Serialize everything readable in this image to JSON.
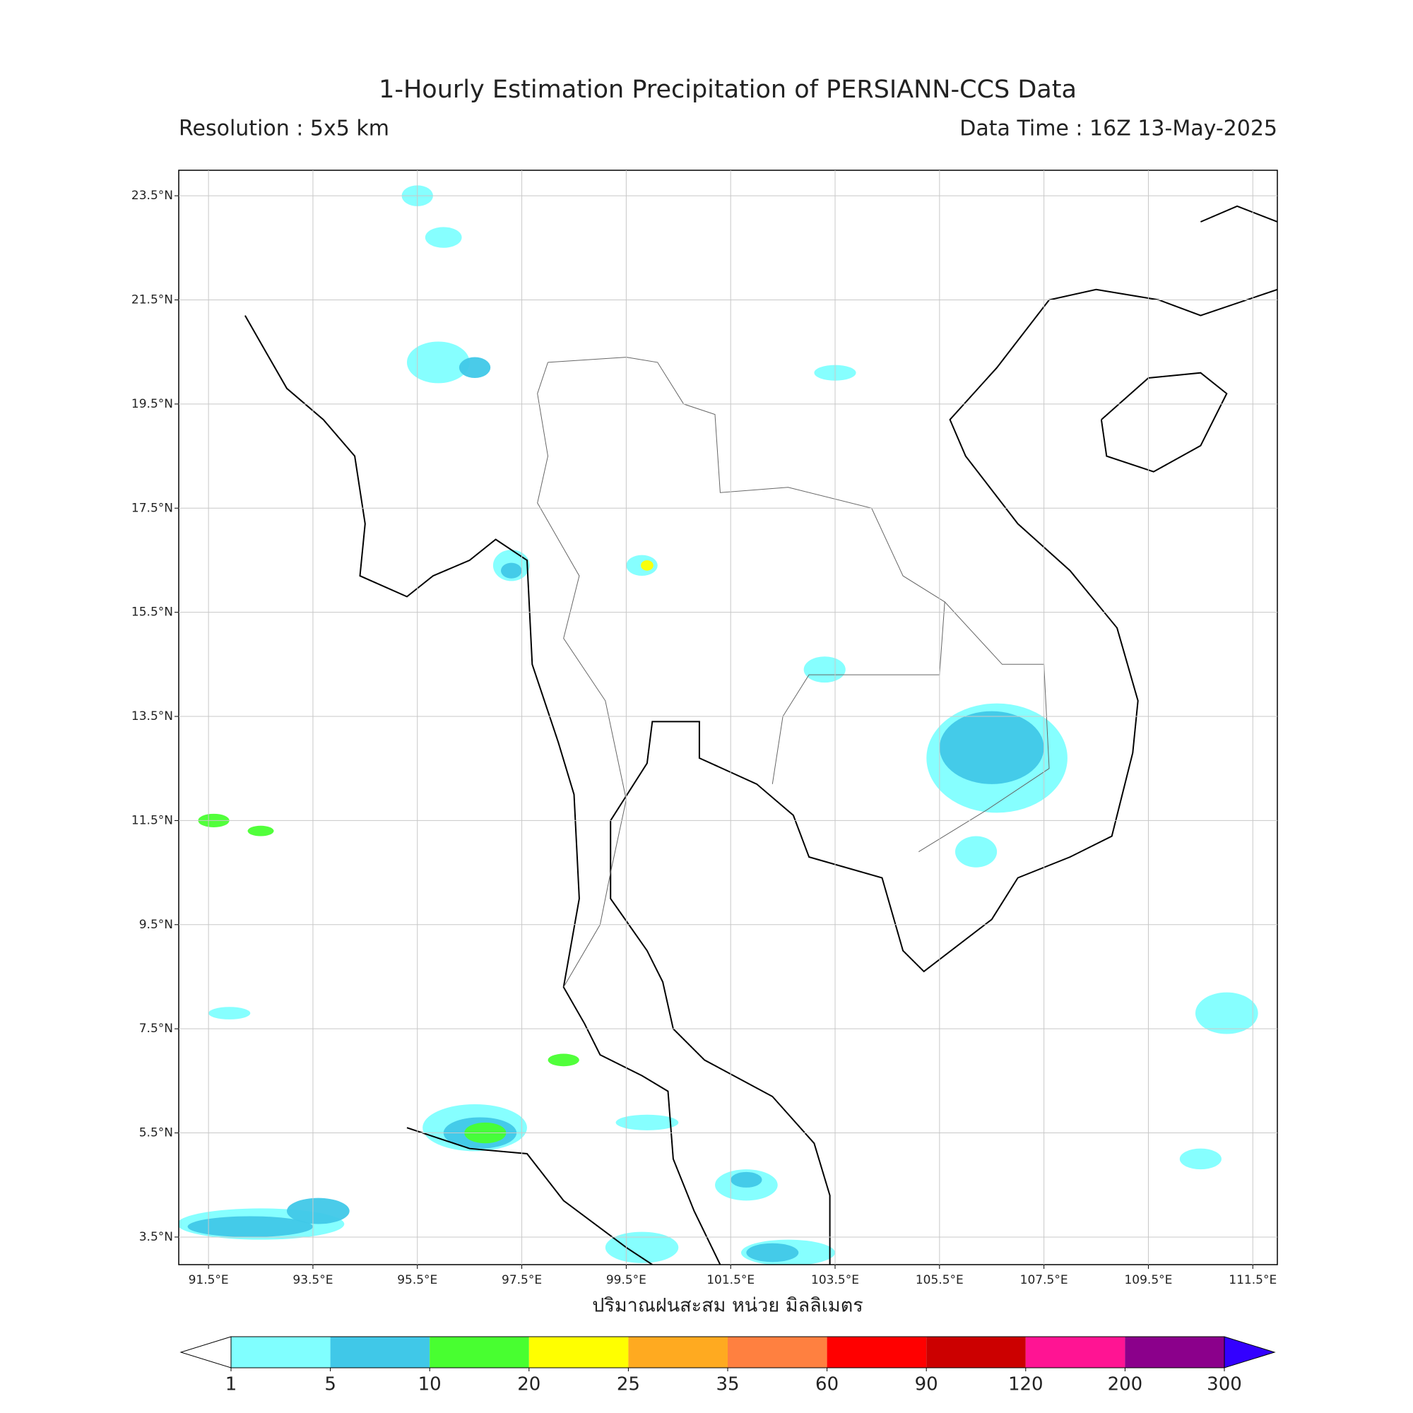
{
  "header": {
    "title": "1-Hourly Estimation Precipitation of PERSIANN-CCS Data",
    "resolution": "Resolution : 5x5 km",
    "data_time": "Data Time : 16Z 13-May-2025"
  },
  "map": {
    "xlabel": "ปริมาณฝนสะสม หน่วย มิลลิเมตร",
    "xlim": [
      90.93,
      111.97
    ],
    "ylim": [
      2.97,
      23.99
    ],
    "xticks": [
      {
        "value": 91.5,
        "label": "91.5°E"
      },
      {
        "value": 93.5,
        "label": "93.5°E"
      },
      {
        "value": 95.5,
        "label": "95.5°E"
      },
      {
        "value": 97.5,
        "label": "97.5°E"
      },
      {
        "value": 99.5,
        "label": "99.5°E"
      },
      {
        "value": 101.5,
        "label": "101.5°E"
      },
      {
        "value": 103.5,
        "label": "103.5°E"
      },
      {
        "value": 105.5,
        "label": "105.5°E"
      },
      {
        "value": 107.5,
        "label": "107.5°E"
      },
      {
        "value": 109.5,
        "label": "109.5°E"
      },
      {
        "value": 111.5,
        "label": "111.5°E"
      }
    ],
    "yticks": [
      {
        "value": 3.5,
        "label": "3.5°N"
      },
      {
        "value": 5.5,
        "label": "5.5°N"
      },
      {
        "value": 7.5,
        "label": "7.5°N"
      },
      {
        "value": 9.5,
        "label": "9.5°N"
      },
      {
        "value": 11.5,
        "label": "11.5°N"
      },
      {
        "value": 13.5,
        "label": "13.5°N"
      },
      {
        "value": 15.5,
        "label": "15.5°N"
      },
      {
        "value": 17.5,
        "label": "17.5°N"
      },
      {
        "value": 19.5,
        "label": "19.5°N"
      },
      {
        "value": 21.5,
        "label": "21.5°N"
      },
      {
        "value": 23.5,
        "label": "23.5°N"
      }
    ],
    "grid": true
  },
  "colorbar": {
    "levels": [
      1,
      5,
      10,
      20,
      25,
      35,
      60,
      90,
      120,
      200,
      300
    ],
    "colors": [
      "#80ffff",
      "#40c8e8",
      "#48ff30",
      "#ffff00",
      "#ffaa20",
      "#ff8040",
      "#ff0000",
      "#cc0000",
      "#ff1493",
      "#8b008b"
    ],
    "under_color": "#ffffff",
    "over_color": "#3300ff"
  }
}
